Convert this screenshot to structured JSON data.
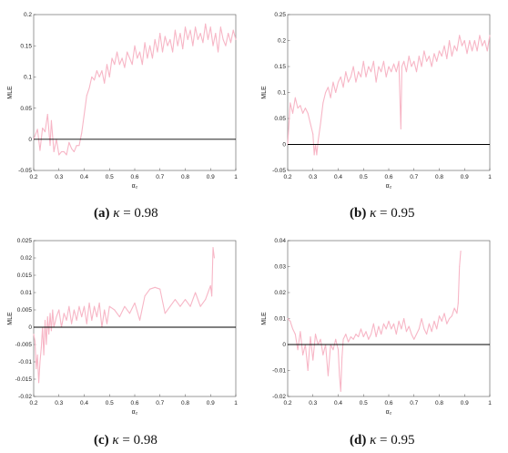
{
  "colors": {
    "series": "#f7b6c6",
    "frame": "#555555",
    "zero": "#000000"
  },
  "chart_data": [
    {
      "type": "line",
      "caption": {
        "letter": "(a)",
        "symbol": "κ",
        "value": "= 0.98"
      },
      "xlabel": "α₂",
      "ylabel": "MLE",
      "xlim": [
        0.2,
        1.0
      ],
      "ylim": [
        -0.05,
        0.2
      ],
      "xticks": [
        "0.2",
        "0.3",
        "0.4",
        "0.5",
        "0.6",
        "0.7",
        "0.8",
        "0.9",
        "1"
      ],
      "yticks": [
        "-0.05",
        "0",
        "0.05",
        "0.1",
        "0.15",
        "0.2"
      ],
      "x": [
        0.2,
        0.215,
        0.225,
        0.235,
        0.245,
        0.255,
        0.265,
        0.27,
        0.28,
        0.29,
        0.3,
        0.31,
        0.32,
        0.33,
        0.34,
        0.35,
        0.36,
        0.37,
        0.38,
        0.39,
        0.4,
        0.41,
        0.42,
        0.43,
        0.44,
        0.45,
        0.46,
        0.47,
        0.48,
        0.49,
        0.5,
        0.51,
        0.52,
        0.53,
        0.54,
        0.55,
        0.56,
        0.57,
        0.58,
        0.59,
        0.6,
        0.61,
        0.62,
        0.63,
        0.64,
        0.65,
        0.66,
        0.67,
        0.68,
        0.69,
        0.7,
        0.71,
        0.72,
        0.73,
        0.74,
        0.75,
        0.76,
        0.77,
        0.78,
        0.79,
        0.8,
        0.81,
        0.82,
        0.83,
        0.84,
        0.85,
        0.86,
        0.87,
        0.88,
        0.89,
        0.9,
        0.91,
        0.92,
        0.93,
        0.94,
        0.95,
        0.96,
        0.97,
        0.98,
        0.99,
        1.0
      ],
      "values": [
        0.0,
        0.016,
        -0.018,
        0.018,
        0.012,
        0.04,
        -0.01,
        0.03,
        -0.02,
        0.0,
        -0.025,
        -0.02,
        -0.02,
        -0.025,
        -0.005,
        -0.015,
        -0.02,
        -0.01,
        -0.01,
        0.01,
        0.04,
        0.07,
        0.082,
        0.1,
        0.095,
        0.11,
        0.1,
        0.11,
        0.09,
        0.12,
        0.1,
        0.13,
        0.12,
        0.14,
        0.12,
        0.13,
        0.115,
        0.14,
        0.13,
        0.12,
        0.15,
        0.13,
        0.14,
        0.12,
        0.155,
        0.13,
        0.15,
        0.13,
        0.16,
        0.14,
        0.17,
        0.14,
        0.165,
        0.15,
        0.16,
        0.14,
        0.175,
        0.15,
        0.17,
        0.145,
        0.18,
        0.16,
        0.175,
        0.15,
        0.18,
        0.16,
        0.17,
        0.155,
        0.185,
        0.16,
        0.18,
        0.15,
        0.17,
        0.14,
        0.18,
        0.16,
        0.15,
        0.17,
        0.155,
        0.175,
        0.16
      ]
    },
    {
      "type": "line",
      "caption": {
        "letter": "(b)",
        "symbol": "κ",
        "value": "= 0.95"
      },
      "xlabel": "α₂",
      "ylabel": "MLE",
      "xlim": [
        0.2,
        1.0
      ],
      "ylim": [
        -0.05,
        0.25
      ],
      "xticks": [
        "0.2",
        "0.3",
        "0.4",
        "0.5",
        "0.6",
        "0.7",
        "0.8",
        "0.9",
        "1"
      ],
      "yticks": [
        "-0.05",
        "0",
        "0.05",
        "0.1",
        "0.15",
        "0.2",
        "0.25"
      ],
      "x": [
        0.2,
        0.21,
        0.22,
        0.23,
        0.24,
        0.25,
        0.26,
        0.27,
        0.28,
        0.29,
        0.3,
        0.305,
        0.31,
        0.315,
        0.32,
        0.33,
        0.34,
        0.35,
        0.36,
        0.37,
        0.38,
        0.39,
        0.4,
        0.41,
        0.42,
        0.43,
        0.44,
        0.45,
        0.46,
        0.47,
        0.48,
        0.49,
        0.5,
        0.51,
        0.52,
        0.53,
        0.54,
        0.55,
        0.56,
        0.57,
        0.58,
        0.59,
        0.6,
        0.61,
        0.62,
        0.63,
        0.64,
        0.648,
        0.652,
        0.66,
        0.67,
        0.68,
        0.69,
        0.7,
        0.71,
        0.72,
        0.73,
        0.74,
        0.75,
        0.76,
        0.77,
        0.78,
        0.79,
        0.8,
        0.81,
        0.82,
        0.83,
        0.84,
        0.85,
        0.86,
        0.87,
        0.88,
        0.89,
        0.9,
        0.91,
        0.92,
        0.93,
        0.94,
        0.95,
        0.96,
        0.97,
        0.98,
        0.99,
        1.0
      ],
      "values": [
        0.0,
        0.08,
        0.06,
        0.09,
        0.07,
        0.075,
        0.06,
        0.07,
        0.06,
        0.04,
        0.02,
        -0.02,
        0.0,
        -0.02,
        0.005,
        0.04,
        0.08,
        0.1,
        0.11,
        0.09,
        0.12,
        0.1,
        0.12,
        0.13,
        0.11,
        0.14,
        0.12,
        0.13,
        0.15,
        0.12,
        0.14,
        0.13,
        0.16,
        0.13,
        0.15,
        0.14,
        0.16,
        0.12,
        0.15,
        0.14,
        0.16,
        0.13,
        0.15,
        0.14,
        0.155,
        0.14,
        0.16,
        0.03,
        0.15,
        0.16,
        0.14,
        0.17,
        0.15,
        0.16,
        0.14,
        0.17,
        0.15,
        0.18,
        0.16,
        0.17,
        0.15,
        0.175,
        0.16,
        0.18,
        0.17,
        0.19,
        0.165,
        0.2,
        0.17,
        0.19,
        0.18,
        0.21,
        0.19,
        0.2,
        0.175,
        0.2,
        0.18,
        0.2,
        0.18,
        0.21,
        0.19,
        0.2,
        0.18,
        0.21
      ]
    },
    {
      "type": "line",
      "caption": {
        "letter": "(c)",
        "symbol": "κ",
        "value": "= 0.98"
      },
      "xlabel": "α₂",
      "ylabel": "MLE",
      "xlim": [
        0.2,
        1.0
      ],
      "ylim": [
        -0.02,
        0.025
      ],
      "xticks": [
        "0.2",
        "0.3",
        "0.4",
        "0.5",
        "0.6",
        "0.7",
        "0.8",
        "0.9",
        "1"
      ],
      "yticks": [
        "-0.02",
        "-0.015",
        "-0.01",
        "-0.005",
        "0",
        "0.005",
        "0.01",
        "0.015",
        "0.02",
        "0.025"
      ],
      "x": [
        0.2,
        0.205,
        0.21,
        0.215,
        0.22,
        0.225,
        0.23,
        0.235,
        0.24,
        0.245,
        0.25,
        0.255,
        0.26,
        0.265,
        0.27,
        0.275,
        0.28,
        0.29,
        0.3,
        0.31,
        0.32,
        0.33,
        0.34,
        0.35,
        0.36,
        0.37,
        0.38,
        0.39,
        0.4,
        0.41,
        0.42,
        0.43,
        0.44,
        0.45,
        0.46,
        0.47,
        0.48,
        0.49,
        0.5,
        0.52,
        0.54,
        0.56,
        0.58,
        0.6,
        0.62,
        0.64,
        0.66,
        0.68,
        0.7,
        0.72,
        0.74,
        0.76,
        0.78,
        0.8,
        0.82,
        0.84,
        0.86,
        0.88,
        0.89,
        0.9,
        0.905,
        0.91,
        0.915
      ],
      "values": [
        -0.002,
        -0.004,
        -0.012,
        -0.008,
        -0.016,
        -0.01,
        -0.006,
        0.0,
        -0.008,
        0.002,
        -0.005,
        0.003,
        -0.002,
        0.004,
        -0.001,
        0.005,
        0.0,
        0.003,
        0.005,
        0.0,
        0.004,
        0.002,
        0.006,
        0.001,
        0.005,
        0.002,
        0.006,
        0.003,
        0.006,
        0.001,
        0.007,
        0.002,
        0.006,
        0.003,
        0.007,
        0.0,
        0.005,
        0.001,
        0.006,
        0.005,
        0.003,
        0.006,
        0.004,
        0.007,
        0.002,
        0.009,
        0.011,
        0.0115,
        0.011,
        0.004,
        0.006,
        0.008,
        0.006,
        0.008,
        0.006,
        0.01,
        0.006,
        0.008,
        0.01,
        0.012,
        0.009,
        0.023,
        0.02
      ]
    },
    {
      "type": "line",
      "caption": {
        "letter": "(d)",
        "symbol": "κ",
        "value": "= 0.95"
      },
      "xlabel": "α₂",
      "ylabel": "MLE",
      "xlim": [
        0.2,
        1.0
      ],
      "ylim": [
        -0.02,
        0.04
      ],
      "xticks": [
        "0.2",
        "0.3",
        "0.4",
        "0.5",
        "0.6",
        "0.7",
        "0.8",
        "0.9",
        "1"
      ],
      "yticks": [
        "-0.02",
        "-0.01",
        "0",
        "0.01",
        "0.02",
        "0.03",
        "0.04"
      ],
      "x": [
        0.2,
        0.21,
        0.22,
        0.23,
        0.24,
        0.25,
        0.26,
        0.27,
        0.28,
        0.29,
        0.3,
        0.31,
        0.32,
        0.33,
        0.34,
        0.35,
        0.36,
        0.37,
        0.38,
        0.39,
        0.4,
        0.405,
        0.41,
        0.415,
        0.42,
        0.43,
        0.44,
        0.45,
        0.46,
        0.47,
        0.48,
        0.49,
        0.5,
        0.51,
        0.52,
        0.53,
        0.54,
        0.55,
        0.56,
        0.57,
        0.58,
        0.59,
        0.6,
        0.61,
        0.62,
        0.63,
        0.64,
        0.65,
        0.66,
        0.67,
        0.68,
        0.69,
        0.7,
        0.71,
        0.72,
        0.73,
        0.74,
        0.75,
        0.76,
        0.77,
        0.78,
        0.79,
        0.8,
        0.81,
        0.82,
        0.83,
        0.84,
        0.85,
        0.86,
        0.87,
        0.875,
        0.88,
        0.885
      ],
      "values": [
        0.01,
        0.009,
        0.006,
        0.004,
        -0.002,
        0.005,
        -0.004,
        0.0,
        -0.01,
        0.003,
        -0.006,
        0.004,
        0.0,
        0.002,
        -0.004,
        0.0,
        -0.012,
        0.0,
        -0.002,
        0.002,
        -0.002,
        -0.012,
        -0.018,
        -0.005,
        0.002,
        0.004,
        0.001,
        0.003,
        0.002,
        0.004,
        0.003,
        0.006,
        0.003,
        0.005,
        0.002,
        0.004,
        0.008,
        0.003,
        0.007,
        0.004,
        0.008,
        0.006,
        0.009,
        0.006,
        0.008,
        0.004,
        0.009,
        0.006,
        0.01,
        0.005,
        0.007,
        0.004,
        0.002,
        0.004,
        0.006,
        0.01,
        0.006,
        0.004,
        0.008,
        0.005,
        0.009,
        0.006,
        0.011,
        0.009,
        0.012,
        0.008,
        0.01,
        0.011,
        0.014,
        0.012,
        0.016,
        0.03,
        0.036
      ]
    }
  ]
}
